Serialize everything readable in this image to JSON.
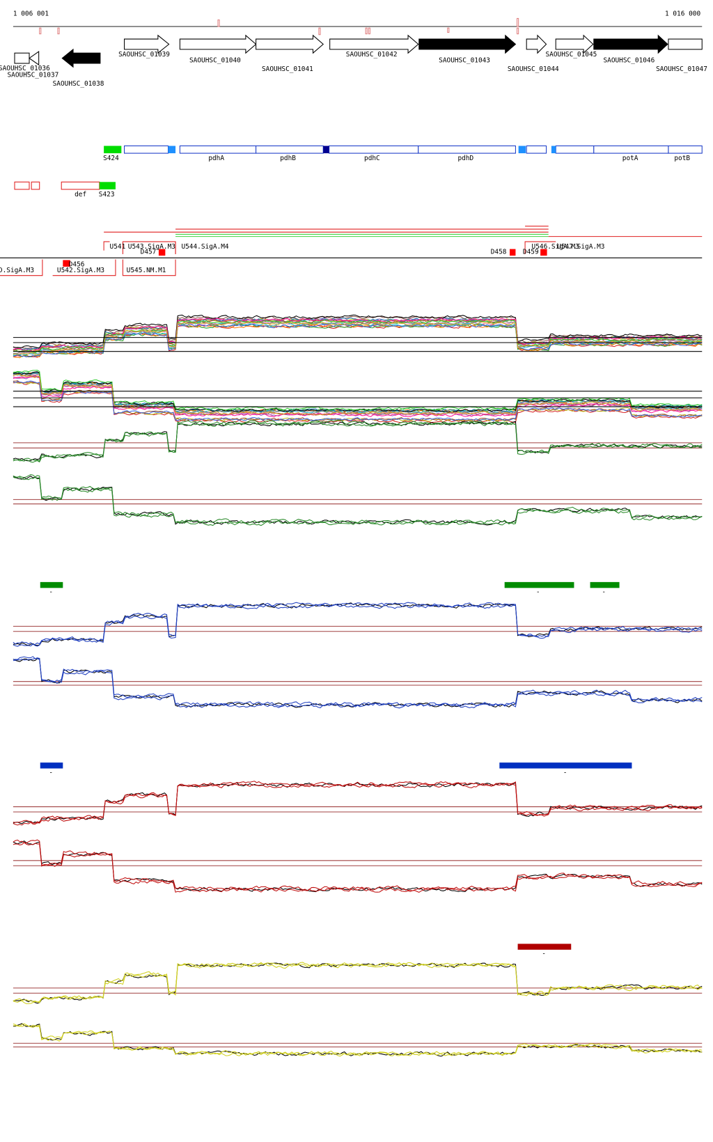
{
  "ruler": {
    "start": "1 006 001",
    "end": "1 016 000"
  },
  "genes": [
    "SAOUHSC_01036",
    "SAOUHSC_01037",
    "SAOUHSC_01038",
    "SAOUHSC_01039",
    "SAOUHSC_01040",
    "SAOUHSC_01041",
    "SAOUHSC_01042",
    "SAOUHSC_01043",
    "SAOUHSC_01044",
    "SAOUHSC_01045",
    "SAOUHSC_01046",
    "SAOUHSC_01047"
  ],
  "operon_labels": [
    "S424",
    "pdhA",
    "pdhB",
    "pdhC",
    "pdhD",
    "potA",
    "potB"
  ],
  "misc_labels": [
    "def",
    "S423"
  ],
  "promoters": [
    "U541",
    "U543.SigA.M3",
    "U544.SigA.M4",
    "D457",
    "D458",
    "D459",
    "U546.SigA.M3",
    "U547.SigA.M3",
    "D456",
    "D.SigA.M3",
    "U542.SigA.M3",
    "U545.NM.M1"
  ],
  "condition_labels": [
    "-",
    "-",
    "-",
    "-",
    "-",
    "-"
  ]
}
